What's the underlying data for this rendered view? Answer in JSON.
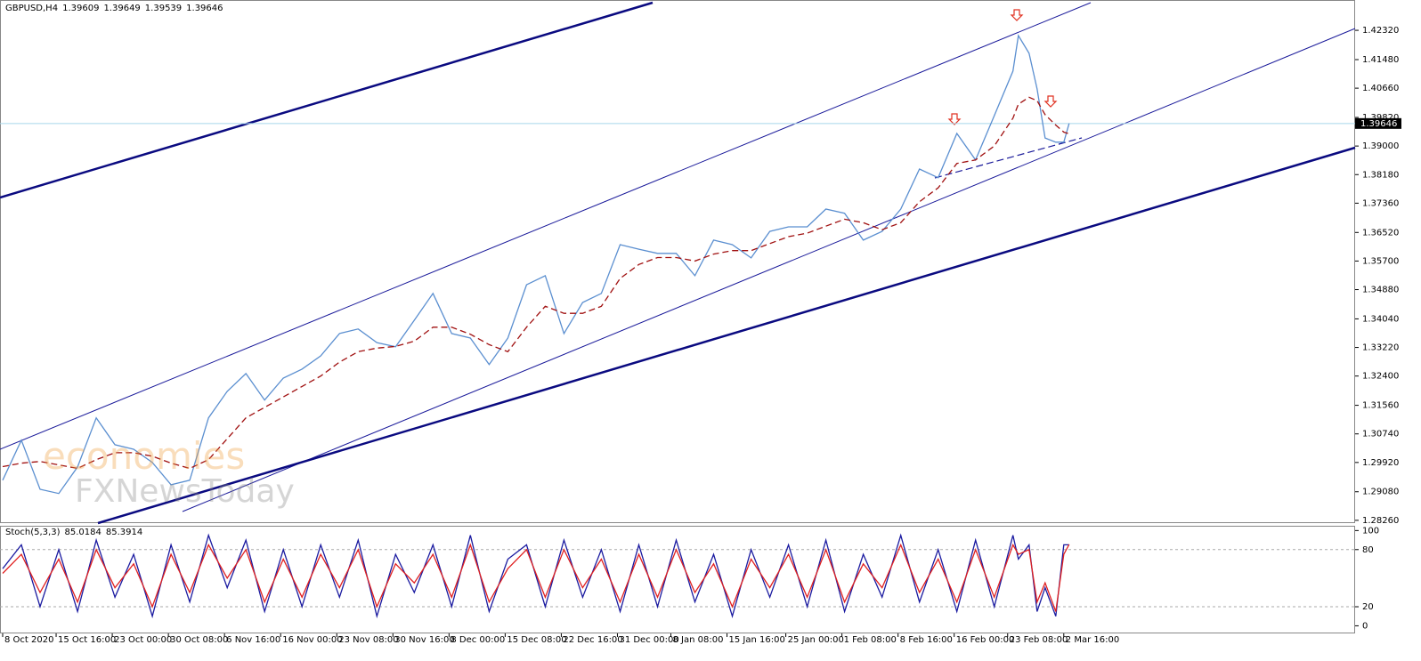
{
  "header": {
    "symbol": "GBPUSD,H4",
    "quote": [
      1.39609,
      1.39649,
      1.39539,
      1.39646
    ]
  },
  "watermark": [
    "economies",
    "FXNewsToday"
  ],
  "chart_data": [
    {
      "type": "line",
      "x": [
        0,
        7,
        14,
        21,
        28,
        35,
        42,
        49,
        56,
        63,
        70,
        77,
        84,
        91,
        98,
        105,
        112,
        119,
        126,
        133,
        140,
        147,
        154,
        161,
        168,
        175,
        182,
        189,
        196,
        203,
        210,
        217,
        224,
        231,
        238,
        245,
        252,
        259,
        266,
        273,
        280,
        287,
        294,
        301,
        308,
        315,
        322,
        329,
        336,
        343,
        350,
        357,
        364,
        371,
        378,
        380,
        384,
        387,
        390,
        394,
        397,
        399
      ],
      "series": [
        {
          "color": "#5b8fd0",
          "values": [
            1.2941,
            1.3056,
            1.2915,
            1.2903,
            1.2979,
            1.312,
            1.3043,
            1.303,
            1.2992,
            1.2928,
            1.2941,
            1.312,
            1.3196,
            1.3247,
            1.3171,
            1.3234,
            1.326,
            1.3298,
            1.3362,
            1.3375,
            1.3336,
            1.3324,
            1.34,
            1.3477,
            1.3362,
            1.3349,
            1.3273,
            1.3349,
            1.3502,
            1.3528,
            1.3362,
            1.3451,
            1.3477,
            1.3617,
            1.3604,
            1.3592,
            1.3592,
            1.3528,
            1.363,
            1.3617,
            1.3579,
            1.3655,
            1.3668,
            1.3668,
            1.3719,
            1.3707,
            1.363,
            1.3655,
            1.3719,
            1.3834,
            1.3809,
            1.3936,
            1.386,
            1.3987,
            1.4115,
            1.4217,
            1.4166,
            1.4064,
            1.3923,
            1.3911,
            1.3911,
            1.3965
          ]
        },
        {
          "color": "#a01010",
          "dashed": true,
          "values": [
            1.298,
            1.299,
            1.2995,
            1.2985,
            1.2975,
            1.3,
            1.302,
            1.302,
            1.301,
            1.299,
            1.2975,
            1.3,
            1.306,
            1.312,
            1.315,
            1.318,
            1.321,
            1.324,
            1.328,
            1.331,
            1.332,
            1.3325,
            1.334,
            1.338,
            1.338,
            1.336,
            1.333,
            1.331,
            1.338,
            1.344,
            1.342,
            1.342,
            1.344,
            1.352,
            1.356,
            1.358,
            1.358,
            1.357,
            1.359,
            1.36,
            1.36,
            1.362,
            1.364,
            1.365,
            1.367,
            1.369,
            1.368,
            1.366,
            1.368,
            1.374,
            1.378,
            1.385,
            1.386,
            1.39,
            1.398,
            1.402,
            1.404,
            1.403,
            1.399,
            1.396,
            1.394,
            1.3935
          ]
        }
      ],
      "xlim": [
        -1,
        506
      ],
      "ylim": [
        1.2818,
        1.4319
      ],
      "yticks": [
        {
          "value": 1.2826,
          "label": "1.28260"
        },
        {
          "value": 1.2908,
          "label": "1.29080"
        },
        {
          "value": 1.2992,
          "label": "1.29920"
        },
        {
          "value": 1.3074,
          "label": "1.30740"
        },
        {
          "value": 1.3156,
          "label": "1.31560"
        },
        {
          "value": 1.324,
          "label": "1.32400"
        },
        {
          "value": 1.3322,
          "label": "1.33220"
        },
        {
          "value": 1.3404,
          "label": "1.34040"
        },
        {
          "value": 1.3488,
          "label": "1.34880"
        },
        {
          "value": 1.357,
          "label": "1.35700"
        },
        {
          "value": 1.3652,
          "label": "1.36520"
        },
        {
          "value": 1.3736,
          "label": "1.37360"
        },
        {
          "value": 1.3818,
          "label": "1.38180"
        },
        {
          "value": 1.39,
          "label": "1.39000"
        },
        {
          "value": 1.3982,
          "label": "1.39820"
        },
        {
          "value": 1.4066,
          "label": "1.40660"
        },
        {
          "value": 1.4148,
          "label": "1.41480"
        },
        {
          "value": 1.4232,
          "label": "1.42320"
        }
      ],
      "last_price": {
        "value": 1.39646,
        "label": "1.39646"
      },
      "grid": false
    },
    {
      "type": "line",
      "indicator": "Stoch(5,3,3)",
      "indicator_values": [
        85.0184,
        85.3914
      ],
      "x": [
        0,
        7,
        14,
        21,
        28,
        35,
        42,
        49,
        56,
        63,
        70,
        77,
        84,
        91,
        98,
        105,
        112,
        119,
        126,
        133,
        140,
        147,
        154,
        161,
        168,
        175,
        182,
        189,
        196,
        203,
        210,
        217,
        224,
        231,
        238,
        245,
        252,
        259,
        266,
        273,
        280,
        287,
        294,
        301,
        308,
        315,
        322,
        329,
        336,
        343,
        350,
        357,
        364,
        371,
        378,
        380,
        384,
        387,
        390,
        394,
        397,
        399
      ],
      "series": [
        {
          "color": "#1a1aa0",
          "values": [
            60,
            85,
            20,
            80,
            15,
            90,
            30,
            75,
            10,
            85,
            25,
            95,
            40,
            90,
            15,
            80,
            20,
            85,
            30,
            90,
            10,
            75,
            35,
            85,
            20,
            95,
            15,
            70,
            85,
            20,
            90,
            30,
            80,
            15,
            85,
            20,
            90,
            25,
            75,
            10,
            80,
            30,
            85,
            20,
            90,
            15,
            75,
            30,
            95,
            25,
            80,
            15,
            90,
            20,
            95,
            70,
            85,
            15,
            40,
            10,
            85,
            85.0184
          ]
        },
        {
          "color": "#e02020",
          "values": [
            55,
            75,
            35,
            70,
            25,
            80,
            40,
            65,
            20,
            75,
            35,
            85,
            50,
            80,
            25,
            70,
            30,
            75,
            40,
            80,
            20,
            65,
            45,
            75,
            30,
            85,
            25,
            60,
            80,
            30,
            80,
            40,
            70,
            25,
            75,
            30,
            80,
            35,
            65,
            20,
            70,
            40,
            75,
            30,
            80,
            25,
            65,
            40,
            85,
            35,
            70,
            25,
            80,
            30,
            85,
            75,
            80,
            25,
            45,
            15,
            75,
            85.3914
          ]
        }
      ],
      "xlim": [
        -1,
        506
      ],
      "ylim": [
        -8,
        105
      ],
      "yticks": [
        0,
        20,
        80,
        100
      ],
      "levels": [
        20,
        80
      ],
      "xticks": [
        {
          "value": 0,
          "label": "8 Oct 2020"
        },
        {
          "value": 20,
          "label": "15 Oct 16:00"
        },
        {
          "value": 41,
          "label": "23 Oct 00:00"
        },
        {
          "value": 62,
          "label": "30 Oct 08:00"
        },
        {
          "value": 83,
          "label": "6 Nov 16:00"
        },
        {
          "value": 104,
          "label": "16 Nov 00:00"
        },
        {
          "value": 125,
          "label": "23 Nov 08:00"
        },
        {
          "value": 146,
          "label": "30 Nov 16:00"
        },
        {
          "value": 167,
          "label": "8 Dec 00:00"
        },
        {
          "value": 188,
          "label": "15 Dec 08:00"
        },
        {
          "value": 209,
          "label": "22 Dec 16:00"
        },
        {
          "value": 230,
          "label": "31 Dec 00:00"
        },
        {
          "value": 250,
          "label": "8 Jan 08:00"
        },
        {
          "value": 271,
          "label": "15 Jan 16:00"
        },
        {
          "value": 293,
          "label": "25 Jan 00:00"
        },
        {
          "value": 314,
          "label": "1 Feb 08:00"
        },
        {
          "value": 335,
          "label": "8 Feb 16:00"
        },
        {
          "value": 356,
          "label": "16 Feb 00:00"
        },
        {
          "value": 376,
          "label": "23 Feb 08:00"
        },
        {
          "value": 397,
          "label": "2 Mar 16:00"
        }
      ]
    }
  ]
}
